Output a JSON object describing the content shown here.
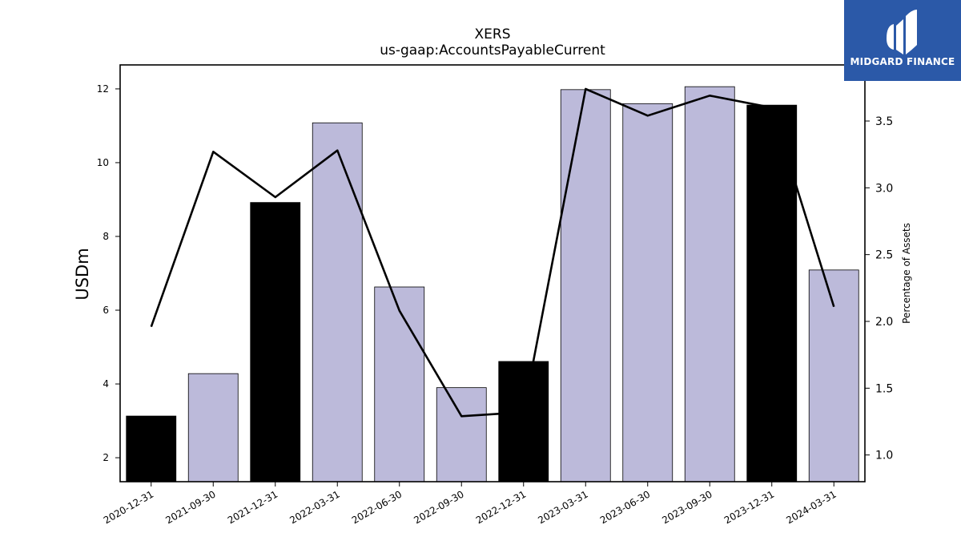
{
  "chart_data": {
    "type": "bar",
    "title": "XERS",
    "subtitle": "us-gaap:AccountsPayableCurrent",
    "ylabel": "USDm",
    "y2label": "Percentage of Assets",
    "categories": [
      "2020-12-31",
      "2021-09-30",
      "2021-12-31",
      "2022-03-31",
      "2022-06-30",
      "2022-09-30",
      "2022-12-31",
      "2023-03-31",
      "2023-06-30",
      "2023-09-30",
      "2023-12-31",
      "2024-03-31"
    ],
    "series": [
      {
        "values": [
          3.13,
          4.28,
          8.92,
          11.08,
          6.63,
          3.9,
          4.61,
          11.98,
          11.6,
          12.06,
          11.56,
          7.09
        ],
        "colors": [
          "#000000",
          "#bcbada",
          "#000000",
          "#bcbada",
          "#bcbada",
          "#bcbada",
          "#000000",
          "#bcbada",
          "#bcbada",
          "#bcbada",
          "#000000",
          "#bcbada"
        ]
      },
      {
        "axis": "right",
        "values": [
          1.96,
          3.27,
          2.93,
          3.28,
          2.08,
          1.29,
          1.32,
          3.74,
          3.54,
          3.69,
          3.6,
          2.11
        ],
        "color": "#000000"
      }
    ],
    "ylim": [
      1.35,
      12.65
    ],
    "y2lim": [
      0.8,
      3.92
    ],
    "yticks": [
      "2",
      "4",
      "6",
      "8",
      "10",
      "12"
    ],
    "y2ticks": [
      "1.0",
      "1.5",
      "2.0",
      "2.5",
      "3.0",
      "3.5"
    ]
  },
  "logo": {
    "text": "MIDGARD FINANCE",
    "bg": "#2b59a8"
  }
}
